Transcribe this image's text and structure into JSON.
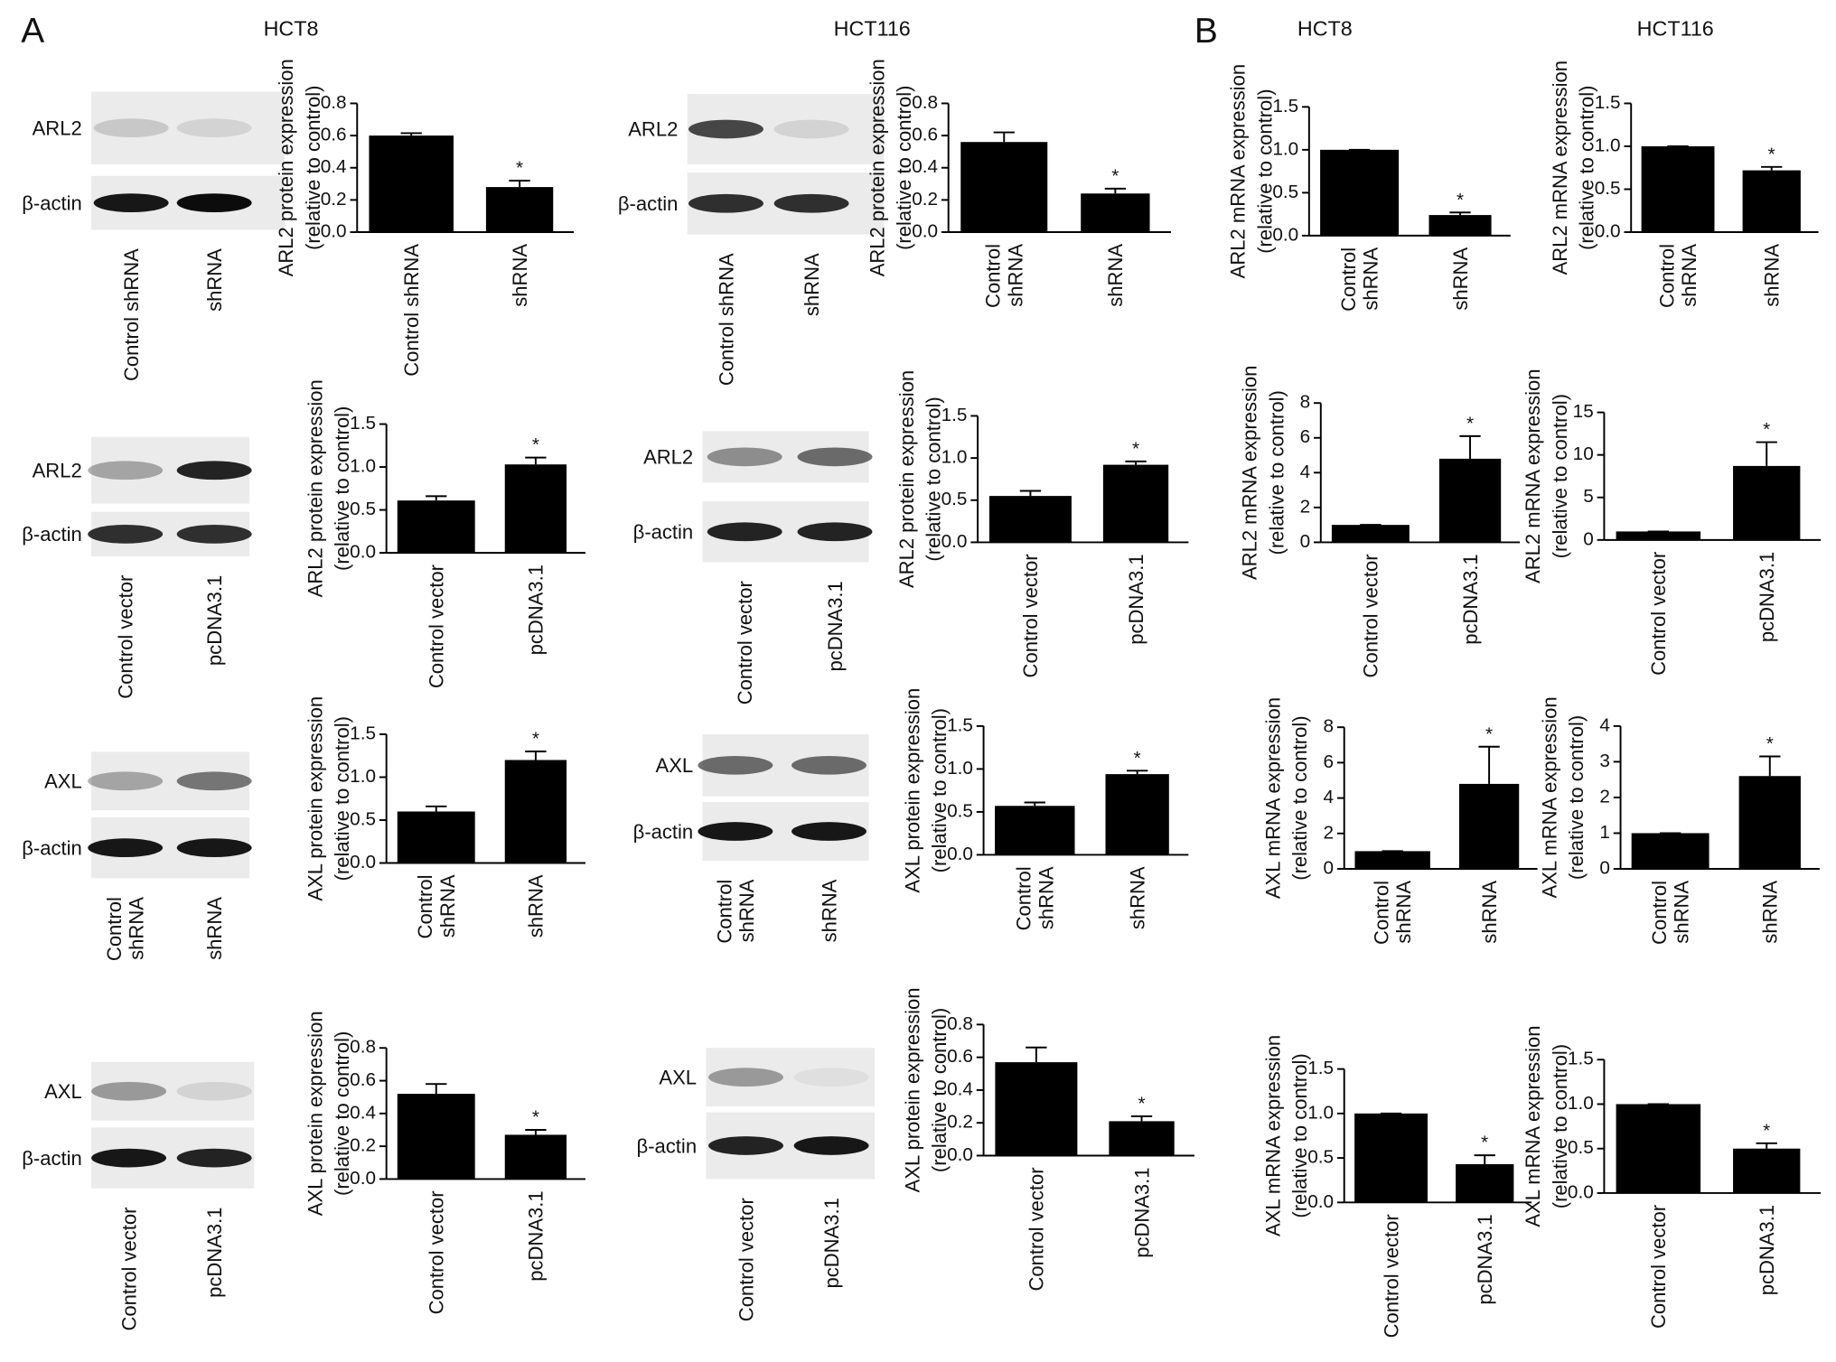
{
  "headers": [
    "A",
    "HCT8",
    "HCT116",
    "B",
    "HCT8",
    "HCT116"
  ],
  "blots": [
    {
      "rows": [
        "ARL2",
        "β-actin"
      ],
      "lanes": [
        "Control shRNA",
        "shRNA"
      ]
    },
    {
      "rows": [
        "ARL2",
        "β-actin"
      ],
      "lanes": [
        "Control vector",
        "pcDNA3.1"
      ]
    },
    {
      "rows": [
        "AXL",
        "β-actin"
      ],
      "lanes": [
        "Control\nshRNA",
        "shRNA"
      ]
    },
    {
      "rows": [
        "AXL",
        "β-actin"
      ],
      "lanes": [
        "Control vector",
        "pcDNA3.1"
      ]
    },
    {
      "rows": [
        "ARL2",
        "β-actin"
      ],
      "lanes": [
        "Control shRNA",
        "shRNA"
      ]
    },
    {
      "rows": [
        "ARL2",
        "β-actin"
      ],
      "lanes": [
        "Control vector",
        "pcDNA3.1"
      ]
    },
    {
      "rows": [
        "AXL",
        "β-actin"
      ],
      "lanes": [
        "Control\nshRNA",
        "shRNA"
      ]
    },
    {
      "rows": [
        "AXL",
        "β-actin"
      ],
      "lanes": [
        "Control vector",
        "pcDNA3.1"
      ]
    }
  ],
  "chart_data": [
    {
      "type": "bar",
      "ylabel": [
        "ARL2 protein expression",
        "(relative to control)"
      ],
      "categories": [
        "Control shRNA",
        "shRNA"
      ],
      "values": [
        0.6,
        0.28
      ],
      "errors": [
        0.015,
        0.04
      ],
      "color": "#000000",
      "annotation": "*",
      "ylim": [
        0,
        0.8
      ],
      "yticks": [
        {
          "value": 0,
          "label": "0.0"
        },
        0.2,
        0.4,
        0.6,
        0.8
      ]
    },
    {
      "type": "bar",
      "ylabel": [
        "ARL2 protein expression",
        "(relative to control)"
      ],
      "categories": [
        "Control vector",
        "pcDNA3.1"
      ],
      "values": [
        0.61,
        1.03
      ],
      "errors": [
        0.05,
        0.08
      ],
      "color": "#000000",
      "annotation": "*",
      "ylim": [
        0,
        1.5
      ],
      "yticks": [
        {
          "value": 0,
          "label": "0.0"
        },
        0.5,
        {
          "value": 1,
          "label": "1.0"
        },
        1.5
      ]
    },
    {
      "type": "bar",
      "ylabel": [
        "AXL protein expression",
        "(relative to control)"
      ],
      "categories": [
        "Control\nshRNA",
        "shRNA"
      ],
      "values": [
        0.6,
        1.2
      ],
      "errors": [
        0.06,
        0.1
      ],
      "color": "#000000",
      "annotation": "*",
      "ylim": [
        0,
        1.5
      ],
      "yticks": [
        {
          "value": 0,
          "label": "0.0"
        },
        0.5,
        {
          "value": 1,
          "label": "1.0"
        },
        1.5
      ]
    },
    {
      "type": "bar",
      "ylabel": [
        "AXL protein expression",
        "(relative to control)"
      ],
      "categories": [
        "Control vector",
        "pcDNA3.1"
      ],
      "values": [
        0.52,
        0.27
      ],
      "errors": [
        0.06,
        0.03
      ],
      "color": "#000000",
      "annotation": "*",
      "ylim": [
        0,
        0.8
      ],
      "yticks": [
        {
          "value": 0,
          "label": "0.0"
        },
        0.2,
        0.4,
        0.6,
        0.8
      ]
    },
    {
      "type": "bar",
      "ylabel": [
        "ARL2 protein expression",
        "(relative to control)"
      ],
      "categories": [
        "Control\nshRNA",
        "shRNA"
      ],
      "values": [
        0.56,
        0.24
      ],
      "errors": [
        0.06,
        0.03
      ],
      "color": "#000000",
      "annotation": "*",
      "ylim": [
        0,
        0.8
      ],
      "yticks": [
        {
          "value": 0,
          "label": "0.0"
        },
        0.2,
        0.4,
        0.6,
        0.8
      ]
    },
    {
      "type": "bar",
      "ylabel": [
        "ARL2 protein expression",
        "(relative to control)"
      ],
      "categories": [
        "Control vector",
        "pcDNA3.1"
      ],
      "values": [
        0.55,
        0.92
      ],
      "errors": [
        0.06,
        0.04
      ],
      "color": "#000000",
      "annotation": "*",
      "ylim": [
        0,
        1.5
      ],
      "yticks": [
        {
          "value": 0,
          "label": "0.0"
        },
        0.5,
        {
          "value": 1,
          "label": "1.0"
        },
        1.5
      ]
    },
    {
      "type": "bar",
      "ylabel": [
        "AXL protein expression",
        "(relative to control)"
      ],
      "categories": [
        "Control\nshRNA",
        "shRNA"
      ],
      "values": [
        0.57,
        0.94
      ],
      "errors": [
        0.04,
        0.04
      ],
      "color": "#000000",
      "annotation": "*",
      "ylim": [
        0,
        1.5
      ],
      "yticks": [
        {
          "value": 0,
          "label": "0.0"
        },
        0.5,
        {
          "value": 1,
          "label": "1.0"
        },
        1.5
      ]
    },
    {
      "type": "bar",
      "ylabel": [
        "AXL protein expression",
        "(relative to control)"
      ],
      "categories": [
        "Control vector",
        "pcDNA3.1"
      ],
      "values": [
        0.57,
        0.21
      ],
      "errors": [
        0.09,
        0.03
      ],
      "color": "#000000",
      "annotation": "*",
      "ylim": [
        0,
        0.8
      ],
      "yticks": [
        {
          "value": 0,
          "label": "0.0"
        },
        0.2,
        0.4,
        0.6,
        0.8
      ]
    },
    {
      "type": "bar",
      "ylabel": [
        "ARL2 mRNA expression",
        "(relative to control)"
      ],
      "categories": [
        "Control\nshRNA",
        "shRNA"
      ],
      "values": [
        1.0,
        0.24
      ],
      "errors": [
        0,
        0.03
      ],
      "color": "#000000",
      "annotation": "*",
      "ylim": [
        0,
        1.5
      ],
      "yticks": [
        {
          "value": 0,
          "label": "0.0"
        },
        0.5,
        {
          "value": 1,
          "label": "1.0"
        },
        1.5
      ]
    },
    {
      "type": "bar",
      "ylabel": [
        "ARL2 mRNA expression",
        "(relative to control)"
      ],
      "categories": [
        "Control vector",
        "pcDNA3.1"
      ],
      "values": [
        1.0,
        4.8
      ],
      "errors": [
        0,
        1.3
      ],
      "color": "#000000",
      "annotation": "*",
      "ylim": [
        0,
        8
      ],
      "yticks": [
        0,
        2,
        4,
        6,
        8
      ]
    },
    {
      "type": "bar",
      "ylabel": [
        "AXL mRNA expression",
        "(relative to control)"
      ],
      "categories": [
        "Control\nshRNA",
        "shRNA"
      ],
      "values": [
        1.0,
        4.8
      ],
      "errors": [
        0,
        2.1
      ],
      "color": "#000000",
      "annotation": "*",
      "ylim": [
        0,
        8
      ],
      "yticks": [
        0,
        2,
        4,
        6,
        8
      ]
    },
    {
      "type": "bar",
      "ylabel": [
        "AXL mRNA expression",
        "(relative to control)"
      ],
      "categories": [
        "Control vector",
        "pcDNA3.1"
      ],
      "values": [
        1.0,
        0.43
      ],
      "errors": [
        0,
        0.1
      ],
      "color": "#000000",
      "annotation": "*",
      "ylim": [
        0,
        1.5
      ],
      "yticks": [
        {
          "value": 0,
          "label": "0.0"
        },
        0.5,
        {
          "value": 1,
          "label": "1.0"
        },
        1.5
      ]
    },
    {
      "type": "bar",
      "ylabel": [
        "ARL2 mRNA expression",
        "(relative to control)"
      ],
      "categories": [
        "Control\nshRNA",
        "shRNA"
      ],
      "values": [
        1.0,
        0.72
      ],
      "errors": [
        0,
        0.04
      ],
      "color": "#000000",
      "annotation": "*",
      "ylim": [
        0,
        1.5
      ],
      "yticks": [
        {
          "value": 0,
          "label": "0.0"
        },
        0.5,
        {
          "value": 1,
          "label": "1.0"
        },
        1.5
      ]
    },
    {
      "type": "bar",
      "ylabel": [
        "ARL2 mRNA expression",
        "(relative to control)"
      ],
      "categories": [
        "Control vector",
        "pcDNA3.1"
      ],
      "values": [
        1.0,
        8.7
      ],
      "errors": [
        0,
        2.8
      ],
      "color": "#000000",
      "annotation": "*",
      "ylim": [
        0,
        15
      ],
      "yticks": [
        0,
        5,
        10,
        15
      ]
    },
    {
      "type": "bar",
      "ylabel": [
        "AXL mRNA expression",
        "(relative to control)"
      ],
      "categories": [
        "Control\nshRNA",
        "shRNA"
      ],
      "values": [
        1.0,
        2.6
      ],
      "errors": [
        0,
        0.55
      ],
      "color": "#000000",
      "annotation": "*",
      "ylim": [
        0,
        4
      ],
      "yticks": [
        0,
        1,
        2,
        3,
        4
      ]
    },
    {
      "type": "bar",
      "ylabel": [
        "AXL mRNA expression",
        "(relative to control)"
      ],
      "categories": [
        "Control vector",
        "pcDNA3.1"
      ],
      "values": [
        1.0,
        0.5
      ],
      "errors": [
        0,
        0.06
      ],
      "color": "#000000",
      "annotation": "*",
      "ylim": [
        0,
        1.5
      ],
      "yticks": [
        {
          "value": 0,
          "label": "0.0"
        },
        0.5,
        {
          "value": 1,
          "label": "1.0"
        },
        1.5
      ]
    }
  ]
}
